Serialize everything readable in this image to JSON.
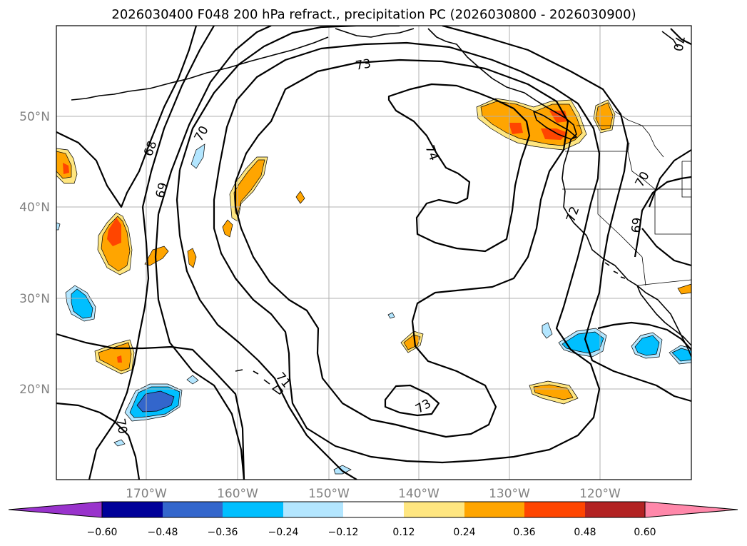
{
  "figure": {
    "title": "2026030400 F048 200 hPa refract., precipitation PC (2026030800 - 2026030900)"
  },
  "axes": {
    "lat_labels": [
      "50°N",
      "40°N",
      "30°N",
      "20°N"
    ],
    "lon_labels": [
      "170°W",
      "160°W",
      "150°W",
      "140°W",
      "130°W",
      "120°W"
    ]
  },
  "contour_labels": [
    "68",
    "69",
    "70",
    "71",
    "73",
    "74",
    "72",
    "69",
    "70",
    "70",
    "73",
    "70"
  ],
  "colorbar": {
    "colors": [
      "#9933cc",
      "#000099",
      "#3366cc",
      "#00bfff",
      "#b3e6ff",
      "#ffffff",
      "#ffe680",
      "#ffa500",
      "#ff4500",
      "#b22222",
      "#ff88aa"
    ],
    "tick_labels": [
      "−0.60",
      "−0.48",
      "−0.36",
      "−0.24",
      "−0.12",
      "0.12",
      "0.24",
      "0.36",
      "0.48",
      "0.60"
    ]
  }
}
